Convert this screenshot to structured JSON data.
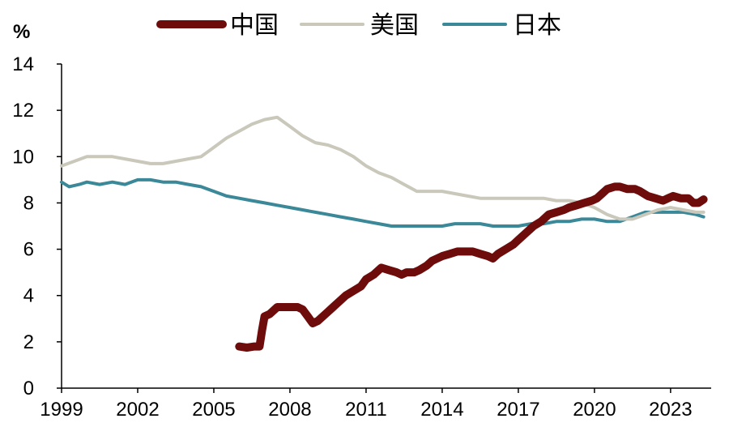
{
  "chart_data": {
    "type": "line",
    "title": "",
    "ylabel": "%",
    "xlabel": "",
    "xlim": [
      1999,
      2024.6
    ],
    "ylim": [
      0,
      14
    ],
    "y_ticks": [
      0,
      2,
      4,
      6,
      8,
      10,
      12,
      14
    ],
    "x_ticks": [
      1999,
      2002,
      2005,
      2008,
      2011,
      2014,
      2017,
      2020,
      2023
    ],
    "grid": false,
    "legend": {
      "placement": "top"
    },
    "colors": {
      "中国": "#6e0b0b",
      "美国": "#c9c8bb",
      "日本": "#3b8898"
    },
    "series": [
      {
        "name": "中国",
        "points": [
          [
            2006.0,
            1.8
          ],
          [
            2006.3,
            1.75
          ],
          [
            2006.6,
            1.8
          ],
          [
            2006.8,
            1.8
          ],
          [
            2006.9,
            2.5
          ],
          [
            2007.0,
            3.1
          ],
          [
            2007.2,
            3.2
          ],
          [
            2007.5,
            3.5
          ],
          [
            2007.8,
            3.5
          ],
          [
            2008.0,
            3.5
          ],
          [
            2008.3,
            3.5
          ],
          [
            2008.5,
            3.4
          ],
          [
            2008.7,
            3.1
          ],
          [
            2008.9,
            2.8
          ],
          [
            2009.1,
            2.9
          ],
          [
            2009.4,
            3.2
          ],
          [
            2009.7,
            3.5
          ],
          [
            2010.0,
            3.8
          ],
          [
            2010.2,
            4.0
          ],
          [
            2010.5,
            4.2
          ],
          [
            2010.8,
            4.4
          ],
          [
            2011.0,
            4.7
          ],
          [
            2011.3,
            4.9
          ],
          [
            2011.6,
            5.2
          ],
          [
            2011.9,
            5.1
          ],
          [
            2012.2,
            5.0
          ],
          [
            2012.4,
            4.9
          ],
          [
            2012.6,
            5.0
          ],
          [
            2012.9,
            5.0
          ],
          [
            2013.1,
            5.1
          ],
          [
            2013.4,
            5.3
          ],
          [
            2013.6,
            5.5
          ],
          [
            2013.8,
            5.6
          ],
          [
            2014.0,
            5.7
          ],
          [
            2014.3,
            5.8
          ],
          [
            2014.6,
            5.9
          ],
          [
            2014.9,
            5.9
          ],
          [
            2015.2,
            5.9
          ],
          [
            2015.5,
            5.8
          ],
          [
            2015.8,
            5.7
          ],
          [
            2016.0,
            5.6
          ],
          [
            2016.2,
            5.8
          ],
          [
            2016.5,
            6.0
          ],
          [
            2016.8,
            6.2
          ],
          [
            2017.0,
            6.4
          ],
          [
            2017.3,
            6.7
          ],
          [
            2017.6,
            7.0
          ],
          [
            2017.9,
            7.2
          ],
          [
            2018.2,
            7.5
          ],
          [
            2018.5,
            7.6
          ],
          [
            2018.8,
            7.7
          ],
          [
            2019.0,
            7.8
          ],
          [
            2019.3,
            7.9
          ],
          [
            2019.6,
            8.0
          ],
          [
            2019.9,
            8.1
          ],
          [
            2020.1,
            8.2
          ],
          [
            2020.3,
            8.4
          ],
          [
            2020.5,
            8.6
          ],
          [
            2020.8,
            8.7
          ],
          [
            2021.0,
            8.7
          ],
          [
            2021.3,
            8.6
          ],
          [
            2021.6,
            8.6
          ],
          [
            2021.8,
            8.5
          ],
          [
            2022.1,
            8.3
          ],
          [
            2022.4,
            8.2
          ],
          [
            2022.7,
            8.1
          ],
          [
            2022.9,
            8.2
          ],
          [
            2023.1,
            8.3
          ],
          [
            2023.4,
            8.2
          ],
          [
            2023.7,
            8.2
          ],
          [
            2023.9,
            8.0
          ],
          [
            2024.1,
            8.0
          ],
          [
            2024.3,
            8.15
          ]
        ]
      },
      {
        "name": "美国",
        "points": [
          [
            1999.0,
            9.6
          ],
          [
            1999.5,
            9.8
          ],
          [
            2000.0,
            10.0
          ],
          [
            2000.5,
            10.0
          ],
          [
            2001.0,
            10.0
          ],
          [
            2001.5,
            9.9
          ],
          [
            2002.0,
            9.8
          ],
          [
            2002.5,
            9.7
          ],
          [
            2003.0,
            9.7
          ],
          [
            2003.5,
            9.8
          ],
          [
            2004.0,
            9.9
          ],
          [
            2004.5,
            10.0
          ],
          [
            2005.0,
            10.4
          ],
          [
            2005.5,
            10.8
          ],
          [
            2006.0,
            11.1
          ],
          [
            2006.5,
            11.4
          ],
          [
            2007.0,
            11.6
          ],
          [
            2007.5,
            11.7
          ],
          [
            2008.0,
            11.3
          ],
          [
            2008.5,
            10.9
          ],
          [
            2009.0,
            10.6
          ],
          [
            2009.5,
            10.5
          ],
          [
            2010.0,
            10.3
          ],
          [
            2010.5,
            10.0
          ],
          [
            2011.0,
            9.6
          ],
          [
            2011.5,
            9.3
          ],
          [
            2012.0,
            9.1
          ],
          [
            2012.5,
            8.8
          ],
          [
            2013.0,
            8.5
          ],
          [
            2013.5,
            8.5
          ],
          [
            2014.0,
            8.5
          ],
          [
            2014.5,
            8.4
          ],
          [
            2015.0,
            8.3
          ],
          [
            2015.5,
            8.2
          ],
          [
            2016.0,
            8.2
          ],
          [
            2016.5,
            8.2
          ],
          [
            2017.0,
            8.2
          ],
          [
            2017.5,
            8.2
          ],
          [
            2018.0,
            8.2
          ],
          [
            2018.5,
            8.1
          ],
          [
            2019.0,
            8.1
          ],
          [
            2019.5,
            8.0
          ],
          [
            2020.0,
            7.8
          ],
          [
            2020.5,
            7.5
          ],
          [
            2021.0,
            7.3
          ],
          [
            2021.5,
            7.3
          ],
          [
            2022.0,
            7.5
          ],
          [
            2022.5,
            7.7
          ],
          [
            2023.0,
            7.8
          ],
          [
            2023.5,
            7.7
          ],
          [
            2024.0,
            7.6
          ],
          [
            2024.3,
            7.6
          ]
        ]
      },
      {
        "name": "日本",
        "points": [
          [
            1999.0,
            8.9
          ],
          [
            1999.3,
            8.7
          ],
          [
            1999.7,
            8.8
          ],
          [
            2000.0,
            8.9
          ],
          [
            2000.5,
            8.8
          ],
          [
            2001.0,
            8.9
          ],
          [
            2001.5,
            8.8
          ],
          [
            2002.0,
            9.0
          ],
          [
            2002.5,
            9.0
          ],
          [
            2003.0,
            8.9
          ],
          [
            2003.5,
            8.9
          ],
          [
            2004.0,
            8.8
          ],
          [
            2004.5,
            8.7
          ],
          [
            2005.0,
            8.5
          ],
          [
            2005.5,
            8.3
          ],
          [
            2006.0,
            8.2
          ],
          [
            2006.5,
            8.1
          ],
          [
            2007.0,
            8.0
          ],
          [
            2007.5,
            7.9
          ],
          [
            2008.0,
            7.8
          ],
          [
            2008.5,
            7.7
          ],
          [
            2009.0,
            7.6
          ],
          [
            2009.5,
            7.5
          ],
          [
            2010.0,
            7.4
          ],
          [
            2010.5,
            7.3
          ],
          [
            2011.0,
            7.2
          ],
          [
            2011.5,
            7.1
          ],
          [
            2012.0,
            7.0
          ],
          [
            2012.5,
            7.0
          ],
          [
            2013.0,
            7.0
          ],
          [
            2013.5,
            7.0
          ],
          [
            2014.0,
            7.0
          ],
          [
            2014.5,
            7.1
          ],
          [
            2015.0,
            7.1
          ],
          [
            2015.5,
            7.1
          ],
          [
            2016.0,
            7.0
          ],
          [
            2016.5,
            7.0
          ],
          [
            2017.0,
            7.0
          ],
          [
            2017.5,
            7.1
          ],
          [
            2018.0,
            7.1
          ],
          [
            2018.5,
            7.2
          ],
          [
            2019.0,
            7.2
          ],
          [
            2019.5,
            7.3
          ],
          [
            2020.0,
            7.3
          ],
          [
            2020.5,
            7.2
          ],
          [
            2021.0,
            7.2
          ],
          [
            2021.5,
            7.4
          ],
          [
            2022.0,
            7.6
          ],
          [
            2022.5,
            7.6
          ],
          [
            2023.0,
            7.6
          ],
          [
            2023.5,
            7.6
          ],
          [
            2024.0,
            7.5
          ],
          [
            2024.3,
            7.4
          ]
        ]
      }
    ]
  }
}
